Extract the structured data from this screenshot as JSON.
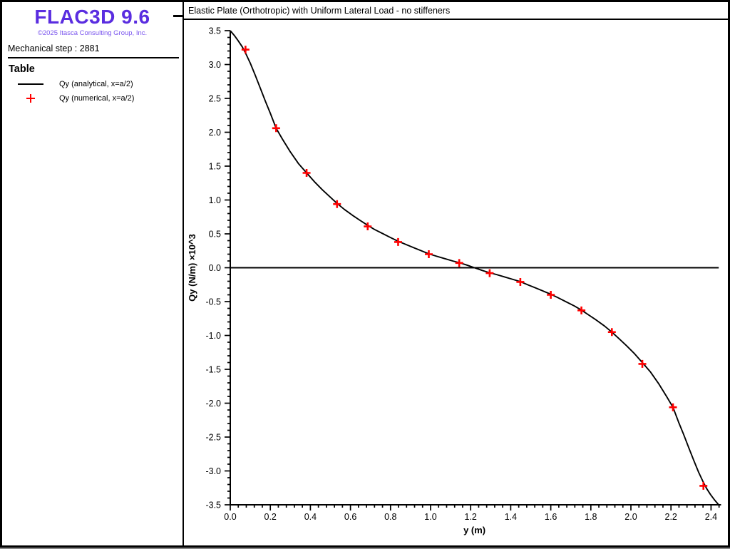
{
  "sidebar": {
    "logo": "FLAC3D 9.6",
    "logo_color": "#5a2de0",
    "copyright": "©2025 Itasca Consulting Group, Inc.",
    "copyright_color": "#7a55ee",
    "step_label": "Mechanical step : 2881",
    "legend": {
      "title": "Table",
      "items": [
        {
          "label": "Qy (analytical, x=a/2)",
          "marker": "line",
          "color": "#000000"
        },
        {
          "label": "Qy (numerical, x=a/2)",
          "marker": "plus",
          "color": "#ff0000"
        }
      ]
    }
  },
  "header": {
    "title": "Elastic Plate (Orthotropic) with Uniform Lateral Load - no stiffeners"
  },
  "chart_data": {
    "type": "line",
    "title": "Elastic Plate (Orthotropic) with Uniform Lateral Load - no stiffeners",
    "xlabel": "y (m)",
    "ylabel": "Qy (N/m) ×10^3",
    "xlim": [
      0,
      2.45
    ],
    "ylim": [
      -3.5,
      3.5
    ],
    "x_major_tick": 0.2,
    "x_minor_tick": 0.04,
    "y_major_tick": 0.5,
    "y_minor_tick": 0.1,
    "zero_line": true,
    "axis_color": "#000000",
    "series": [
      {
        "name": "Qy (analytical, x=a/2)",
        "type": "line",
        "color": "#000000",
        "points": [
          [
            0.0,
            3.5
          ],
          [
            0.02,
            3.43
          ],
          [
            0.04,
            3.35
          ],
          [
            0.06,
            3.26
          ],
          [
            0.076,
            3.17
          ],
          [
            0.1,
            3.02
          ],
          [
            0.125,
            2.84
          ],
          [
            0.15,
            2.65
          ],
          [
            0.175,
            2.46
          ],
          [
            0.2,
            2.28
          ],
          [
            0.229,
            2.06
          ],
          [
            0.26,
            1.9
          ],
          [
            0.3,
            1.71
          ],
          [
            0.34,
            1.54
          ],
          [
            0.381,
            1.4
          ],
          [
            0.42,
            1.27
          ],
          [
            0.46,
            1.15
          ],
          [
            0.5,
            1.04
          ],
          [
            0.533,
            0.95
          ],
          [
            0.57,
            0.86
          ],
          [
            0.61,
            0.775
          ],
          [
            0.65,
            0.695
          ],
          [
            0.686,
            0.625
          ],
          [
            0.72,
            0.565
          ],
          [
            0.76,
            0.505
          ],
          [
            0.8,
            0.445
          ],
          [
            0.838,
            0.39
          ],
          [
            0.88,
            0.34
          ],
          [
            0.92,
            0.29
          ],
          [
            0.95,
            0.255
          ],
          [
            0.991,
            0.205
          ],
          [
            1.03,
            0.17
          ],
          [
            1.07,
            0.135
          ],
          [
            1.11,
            0.1
          ],
          [
            1.143,
            0.075
          ],
          [
            1.18,
            0.04
          ],
          [
            1.219,
            0.0
          ],
          [
            1.258,
            -0.04
          ],
          [
            1.295,
            -0.075
          ],
          [
            1.328,
            -0.1
          ],
          [
            1.368,
            -0.135
          ],
          [
            1.408,
            -0.17
          ],
          [
            1.448,
            -0.205
          ],
          [
            1.488,
            -0.255
          ],
          [
            1.518,
            -0.29
          ],
          [
            1.558,
            -0.34
          ],
          [
            1.6,
            -0.39
          ],
          [
            1.638,
            -0.445
          ],
          [
            1.678,
            -0.505
          ],
          [
            1.718,
            -0.565
          ],
          [
            1.753,
            -0.625
          ],
          [
            1.788,
            -0.695
          ],
          [
            1.828,
            -0.775
          ],
          [
            1.868,
            -0.86
          ],
          [
            1.905,
            -0.95
          ],
          [
            1.938,
            -1.04
          ],
          [
            1.978,
            -1.15
          ],
          [
            2.018,
            -1.27
          ],
          [
            2.057,
            -1.4
          ],
          [
            2.098,
            -1.54
          ],
          [
            2.138,
            -1.71
          ],
          [
            2.178,
            -1.9
          ],
          [
            2.21,
            -2.06
          ],
          [
            2.238,
            -2.28
          ],
          [
            2.263,
            -2.46
          ],
          [
            2.288,
            -2.65
          ],
          [
            2.313,
            -2.84
          ],
          [
            2.338,
            -3.02
          ],
          [
            2.362,
            -3.17
          ],
          [
            2.378,
            -3.26
          ],
          [
            2.398,
            -3.35
          ],
          [
            2.418,
            -3.43
          ],
          [
            2.438,
            -3.5
          ]
        ]
      },
      {
        "name": "Qy (numerical, x=a/2)",
        "type": "scatter",
        "marker": "plus",
        "color": "#ff0000",
        "points": [
          [
            0.076,
            3.22
          ],
          [
            0.229,
            2.06
          ],
          [
            0.381,
            1.4
          ],
          [
            0.533,
            0.94
          ],
          [
            0.686,
            0.61
          ],
          [
            0.838,
            0.38
          ],
          [
            0.991,
            0.2
          ],
          [
            1.143,
            0.07
          ],
          [
            1.295,
            -0.08
          ],
          [
            1.448,
            -0.21
          ],
          [
            1.6,
            -0.4
          ],
          [
            1.753,
            -0.63
          ],
          [
            1.905,
            -0.95
          ],
          [
            2.057,
            -1.42
          ],
          [
            2.21,
            -2.06
          ],
          [
            2.362,
            -3.22
          ]
        ]
      }
    ]
  }
}
